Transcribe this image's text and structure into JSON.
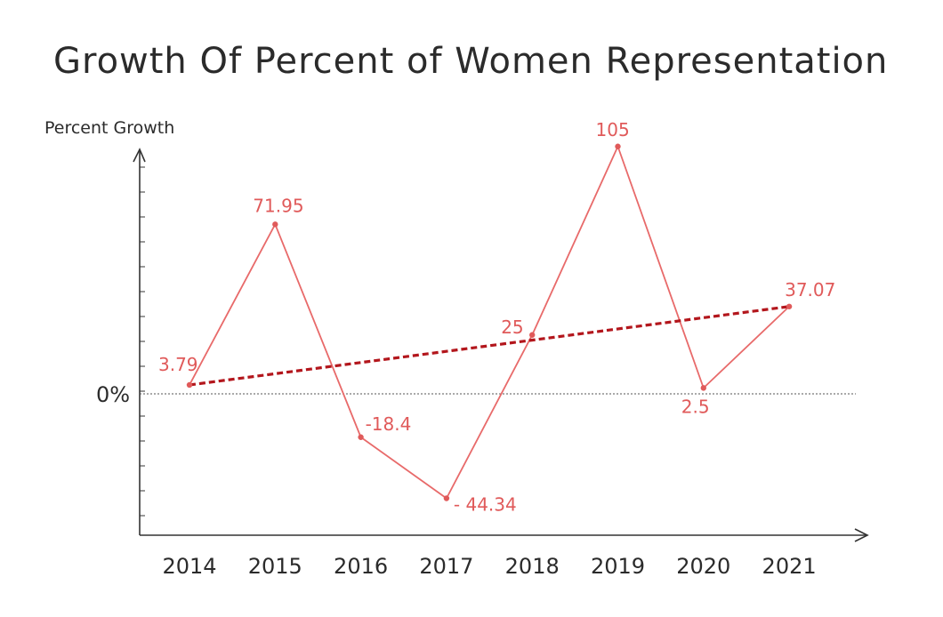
{
  "chart_data": {
    "type": "line",
    "title": "Growth Of Percent of Women Representation",
    "ylabel": "Percent Growth",
    "xlabel": "",
    "zero_label": "0%",
    "categories": [
      "2014",
      "2015",
      "2016",
      "2017",
      "2018",
      "2019",
      "2020",
      "2021"
    ],
    "series": [
      {
        "values": [
          3.79,
          71.95,
          -18.4,
          -44.34,
          25,
          105,
          2.5,
          37.07
        ],
        "labels": [
          "3.79",
          "71.95",
          "-18.4",
          "- 44.34",
          "25",
          "105",
          "2.5",
          "37.07"
        ]
      }
    ],
    "trendline": {
      "style": "dashed",
      "from": 3.79,
      "to": 37.07
    },
    "ylim": [
      -55,
      115
    ],
    "grid": false,
    "legend": "none",
    "colors": {
      "line": "#e86a6a",
      "label": "#e05a5a",
      "trend": "#b3161c",
      "axis": "#333333",
      "zero_line": "#555555"
    }
  }
}
